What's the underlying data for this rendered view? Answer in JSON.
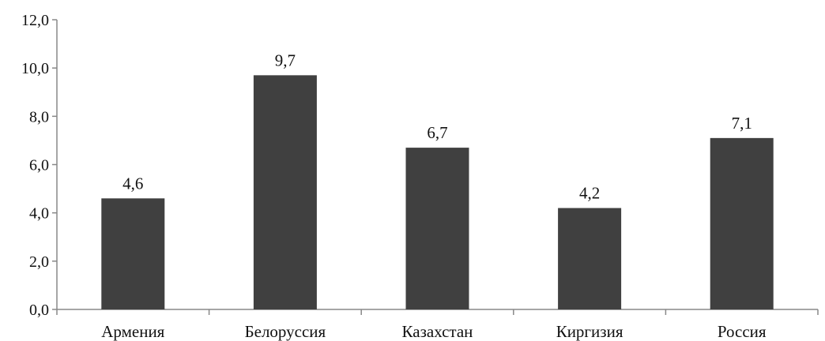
{
  "chart_data": {
    "type": "bar",
    "title": "",
    "xlabel": "",
    "ylabel": "",
    "categories": [
      "Армения",
      "Белоруссия",
      "Казахстан",
      "Киргизия",
      "Россия"
    ],
    "values": [
      4.6,
      9.7,
      6.7,
      4.2,
      7.1
    ],
    "value_labels": [
      "4,6",
      "9,7",
      "6,7",
      "4,2",
      "7,1"
    ],
    "ylim": [
      0,
      12
    ],
    "yticks": [
      0,
      2,
      4,
      6,
      8,
      10,
      12
    ],
    "ytick_labels": [
      "0,0",
      "2,0",
      "4,0",
      "6,0",
      "8,0",
      "10,0",
      "12,0"
    ],
    "grid": false,
    "legend": "none",
    "colors": {
      "bar": "#404040",
      "axis": "#888888",
      "text": "#111111"
    }
  }
}
